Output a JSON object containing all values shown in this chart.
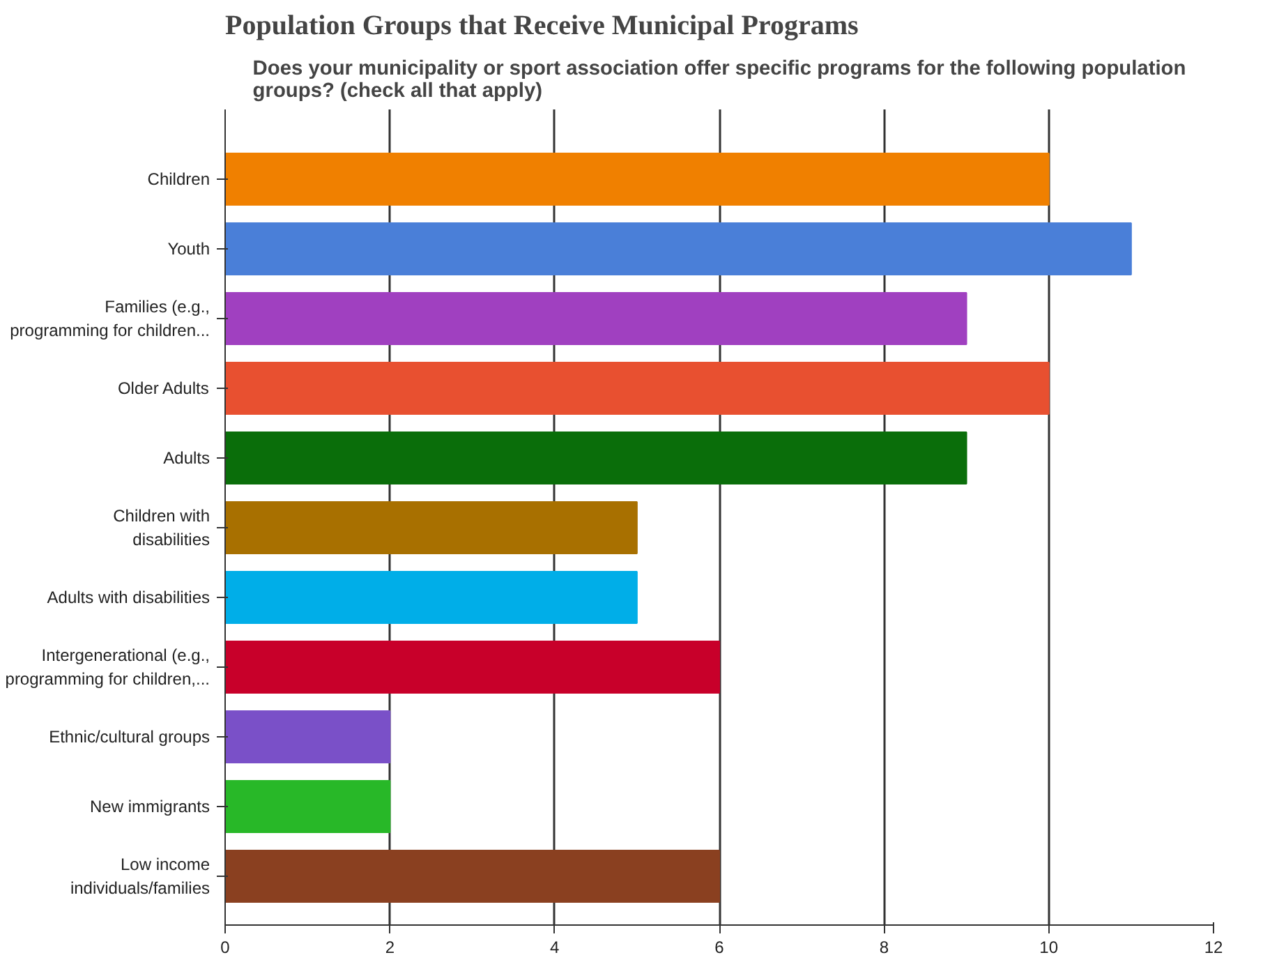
{
  "chart_data": {
    "type": "bar",
    "orientation": "horizontal",
    "title": "Population Groups that Receive Municipal Programs",
    "subtitle": "Does your municipality or sport association offer specific programs for the following population\ngroups? (check all that apply)",
    "categories": [
      "Children",
      "Youth",
      "Families (e.g.,\nprogramming for children...",
      "Older Adults",
      "Adults",
      "Children with\ndisabilities",
      "Adults with disabilities",
      "Intergenerational (e.g.,\nprogramming for children,...",
      "Ethnic/cultural groups",
      "New immigrants",
      "Low income\nindividuals/families"
    ],
    "values": [
      10,
      11,
      9,
      10,
      9,
      5,
      5,
      6,
      2,
      2,
      6
    ],
    "colors": [
      "#f08000",
      "#4a7fd8",
      "#a040c0",
      "#e85030",
      "#0a6e0a",
      "#a87000",
      "#00aee8",
      "#c8002a",
      "#7a50c8",
      "#28b828",
      "#8a4020"
    ],
    "xlim": [
      0,
      12
    ],
    "xticks": [
      0,
      2,
      4,
      6,
      8,
      10,
      12
    ],
    "grid": "x"
  }
}
